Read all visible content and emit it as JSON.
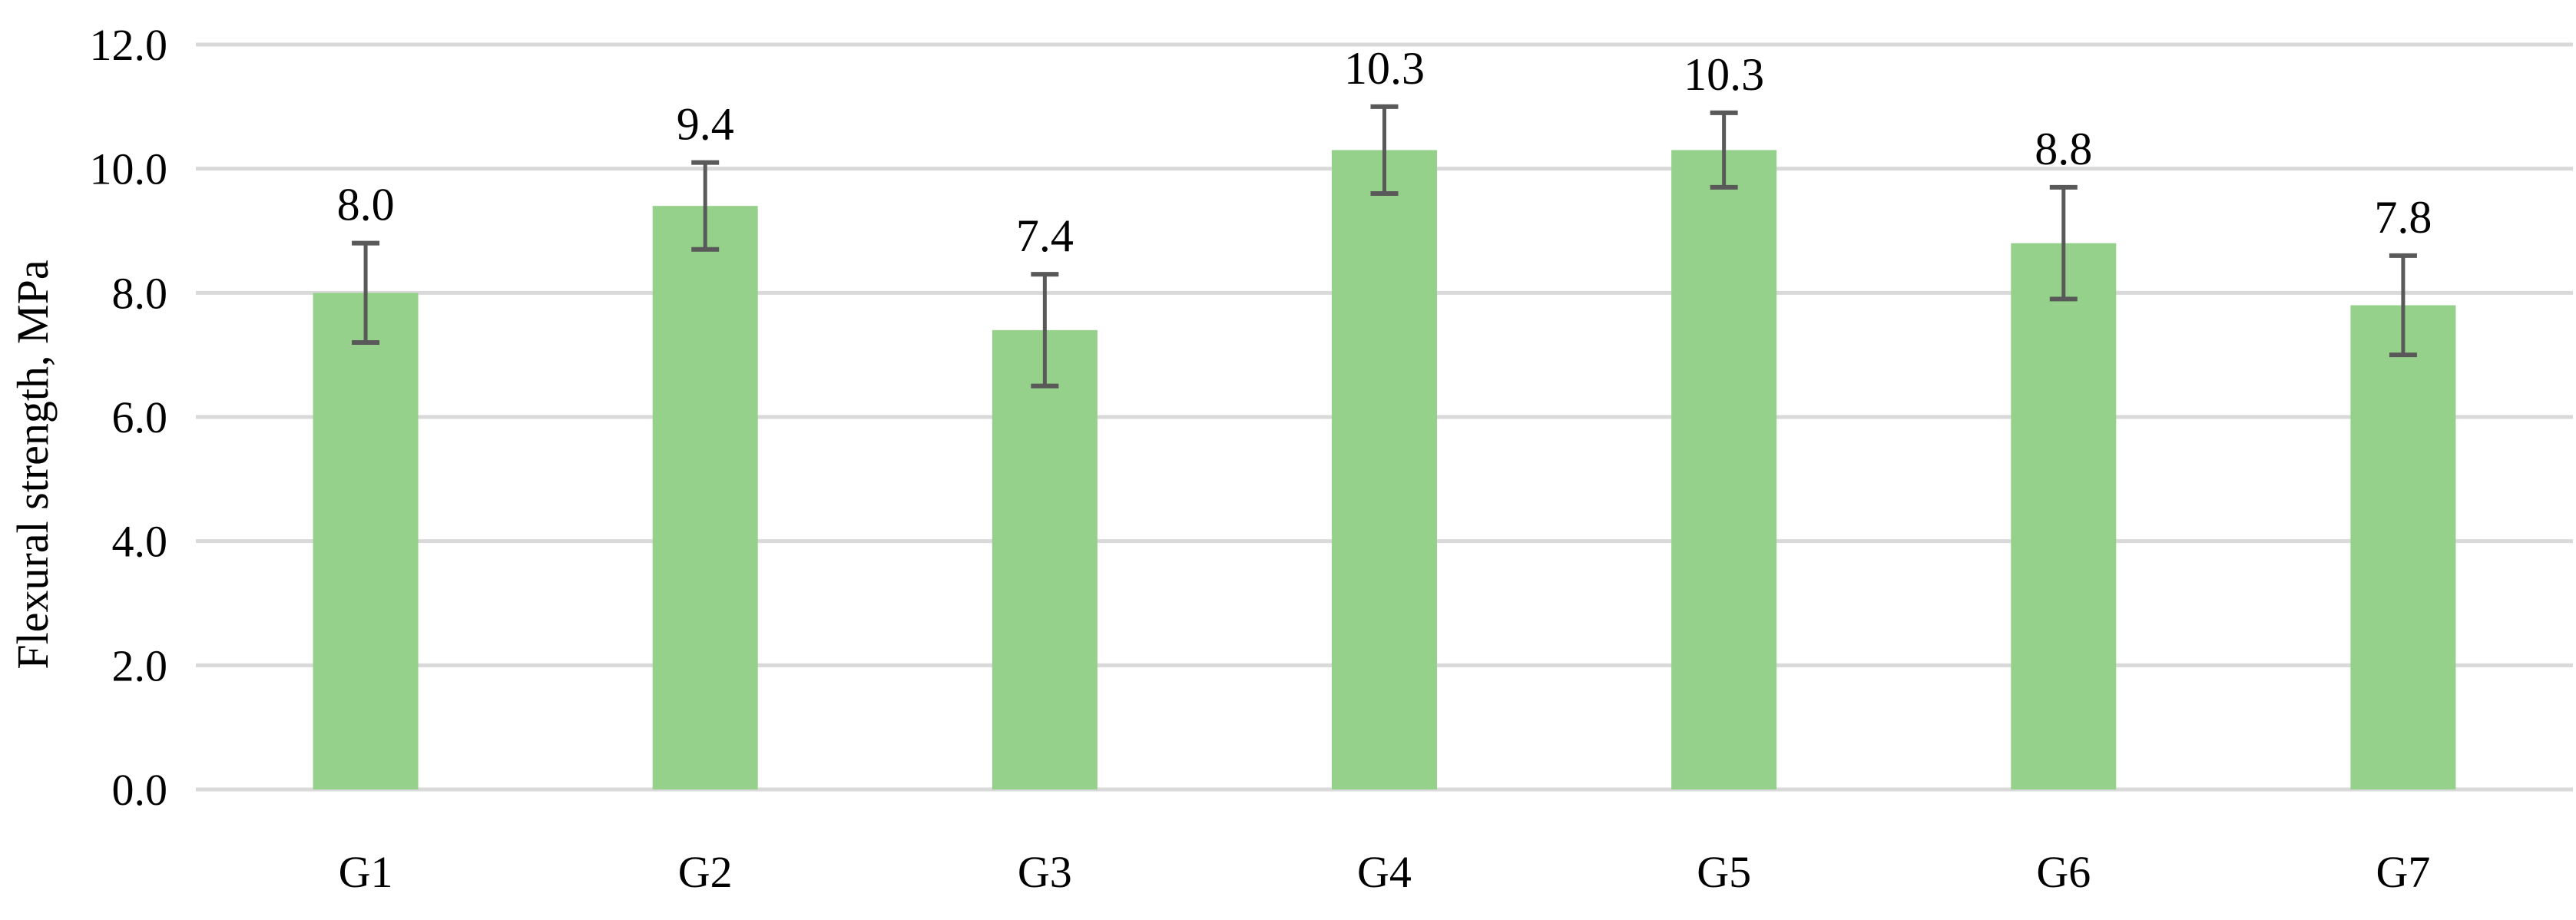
{
  "chart_data": {
    "type": "bar",
    "title": "",
    "xlabel": "",
    "ylabel": "Flexural strength, MPa",
    "categories": [
      "G1",
      "G2",
      "G3",
      "G4",
      "G5",
      "G6",
      "G7"
    ],
    "values": [
      8.0,
      9.4,
      7.4,
      10.3,
      10.3,
      8.8,
      7.8
    ],
    "data_labels": [
      "8.0",
      "9.4",
      "7.4",
      "10.3",
      "10.3",
      "8.8",
      "7.8"
    ],
    "error_bars": [
      0.8,
      0.7,
      0.9,
      0.7,
      0.6,
      0.9,
      0.8
    ],
    "ylim": [
      0,
      12
    ],
    "yticks": [
      0,
      2,
      4,
      6,
      8,
      10,
      12
    ],
    "ytick_labels": [
      "0.0",
      "2.0",
      "4.0",
      "6.0",
      "8.0",
      "10.0",
      "12.0"
    ],
    "grid": true,
    "legend": "none",
    "colors": {
      "bar": "#96d18b",
      "grid": "#d9d9d9",
      "error_bar": "#595959"
    }
  }
}
